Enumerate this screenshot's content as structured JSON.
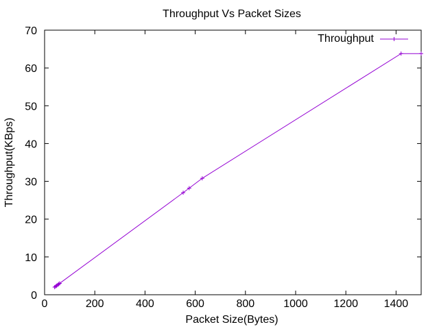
{
  "chart_data": {
    "type": "line",
    "title": "Throughput Vs Packet Sizes",
    "xlabel": "Packet Size(Bytes)",
    "ylabel": "Throughput(KBps)",
    "xlim": [
      0,
      1500
    ],
    "ylim": [
      0,
      70
    ],
    "xticks": [
      0,
      200,
      400,
      600,
      800,
      1000,
      1200,
      1400
    ],
    "yticks": [
      0,
      10,
      20,
      30,
      40,
      50,
      60,
      70
    ],
    "grid": false,
    "legend_position": "top-right",
    "colors": {
      "series": "#9400d3",
      "axis": "#000000"
    },
    "series": [
      {
        "name": "Throughput",
        "marker": "plus",
        "x": [
          40,
          44,
          48,
          52,
          56,
          60,
          552,
          576,
          628,
          1420,
          1500
        ],
        "y": [
          2.0,
          2.2,
          2.4,
          2.6,
          2.8,
          3.0,
          27.0,
          28.2,
          30.8,
          63.8,
          63.8
        ]
      }
    ]
  }
}
